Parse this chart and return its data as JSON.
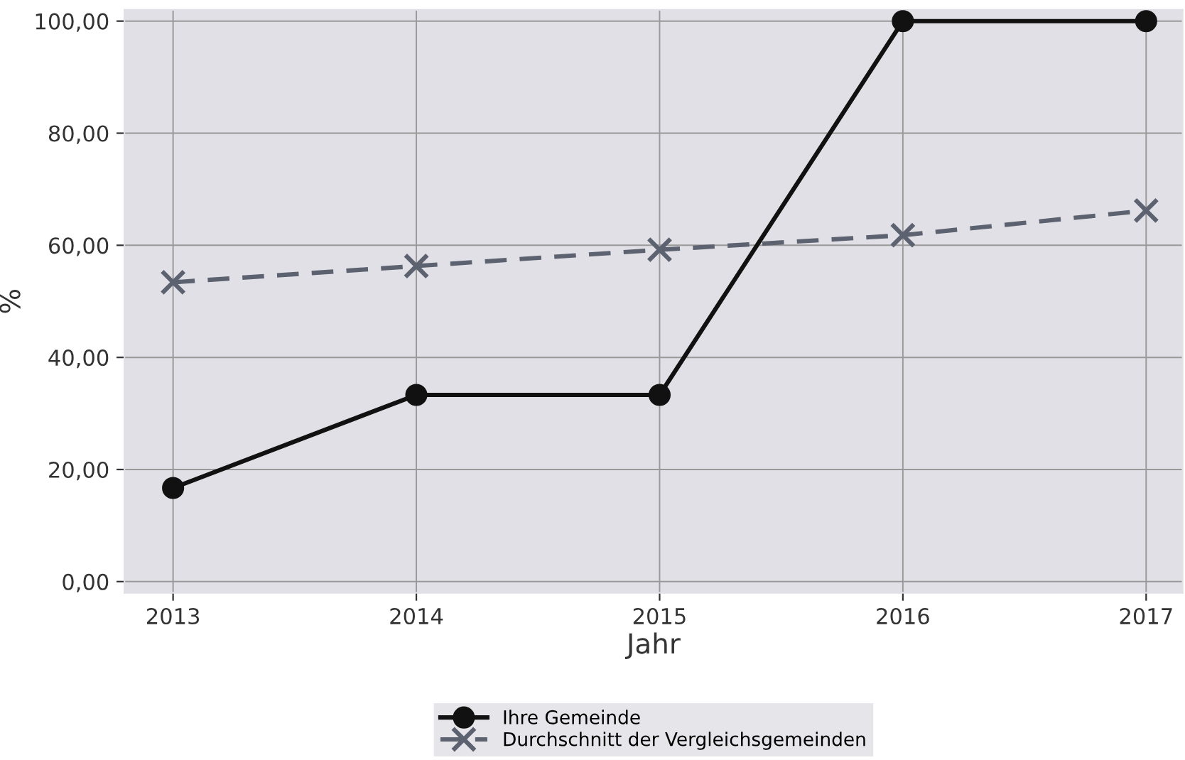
{
  "chart_data": {
    "type": "line",
    "xlabel": "Jahr",
    "ylabel": "%",
    "x": [
      2013,
      2014,
      2015,
      2016,
      2017
    ],
    "series": [
      {
        "name": "Ihre Gemeinde",
        "color": "#111111",
        "values": [
          16.7,
          33.3,
          33.3,
          100,
          100
        ],
        "marker": "circle",
        "line_style": "solid"
      },
      {
        "name": "Durchschnitt der Vergleichsgemeinden",
        "color": "#5d6270",
        "values": [
          53.4,
          56.3,
          59.2,
          61.8,
          66.2
        ],
        "marker": "cross",
        "line_style": "dashed"
      }
    ],
    "xlim": [
      2012.8,
      2017.15
    ],
    "xticks": [
      2013,
      2014,
      2015,
      2016,
      2017
    ],
    "ylim": [
      -2,
      102
    ],
    "yticks": [
      {
        "value": 0,
        "label": "0,00"
      },
      {
        "value": 20,
        "label": "20,00"
      },
      {
        "value": 40,
        "label": "40,00"
      },
      {
        "value": 60,
        "label": "60,00"
      },
      {
        "value": 80,
        "label": "80,00"
      },
      {
        "value": 100,
        "label": "100,00"
      }
    ],
    "grid": true,
    "legend": "bottom"
  }
}
